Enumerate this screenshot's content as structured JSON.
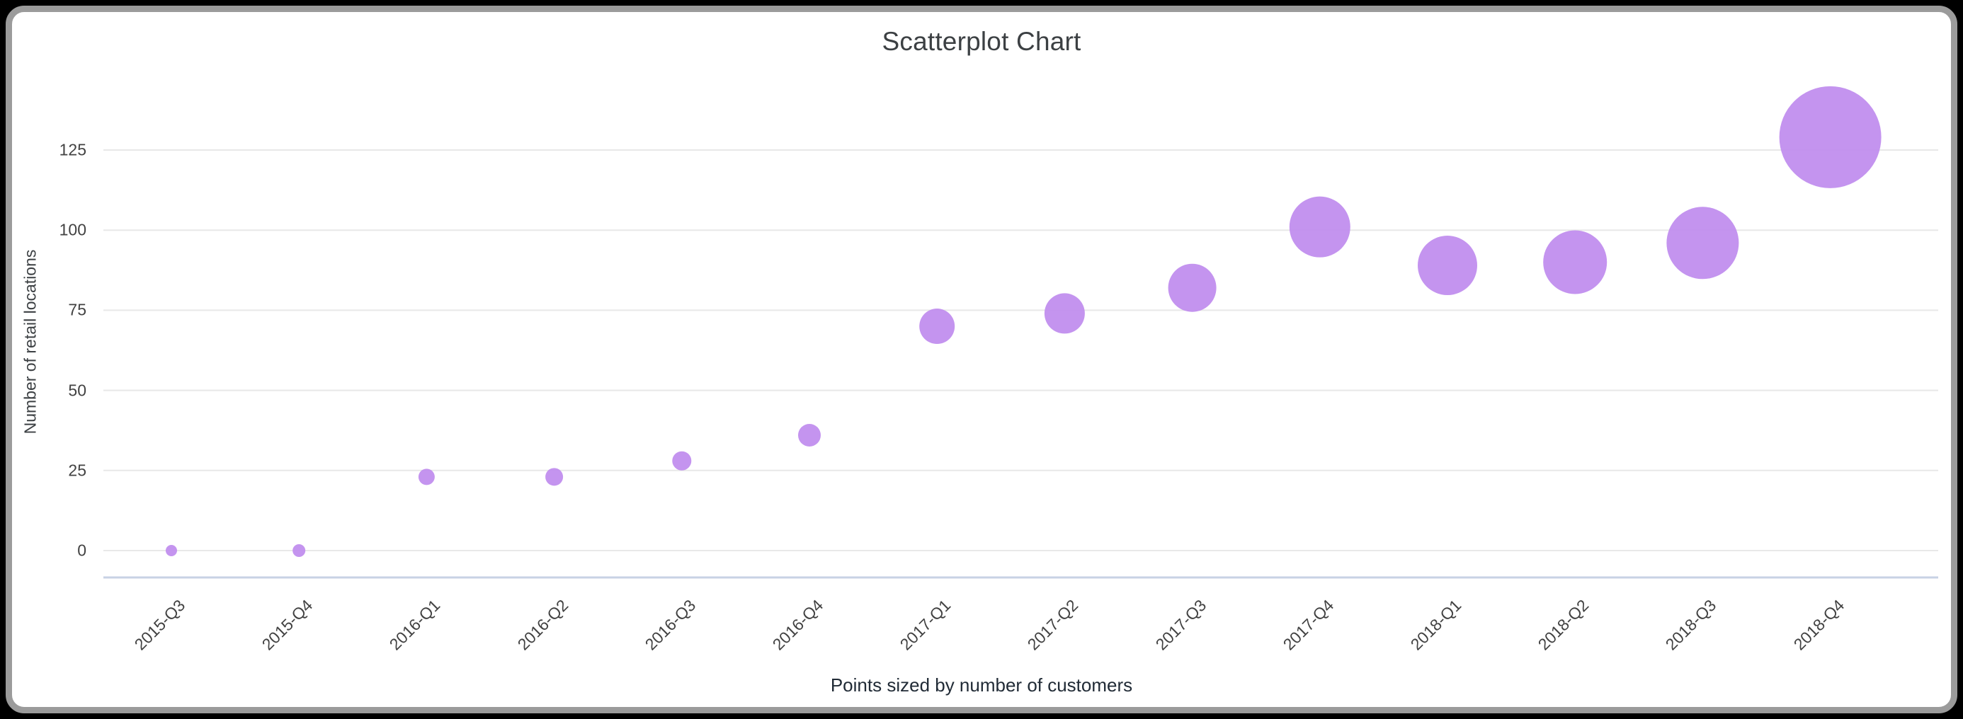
{
  "window": {
    "background_color": "#000000",
    "card_background_color": "#ffffff",
    "card_border_color": "#9b9b9b"
  },
  "chart_data": {
    "type": "scatter",
    "title": "Scatterplot Chart",
    "ylabel": "Number of retail locations",
    "xlabel": "",
    "caption": "Points sized by number of customers",
    "categories": [
      "2015-Q3",
      "2015-Q4",
      "2016-Q1",
      "2016-Q2",
      "2016-Q3",
      "2016-Q4",
      "2017-Q1",
      "2017-Q2",
      "2017-Q3",
      "2017-Q4",
      "2018-Q1",
      "2018-Q2",
      "2018-Q3",
      "2018-Q4"
    ],
    "series": [
      {
        "name": "Number of retail locations",
        "values": [
          0,
          0,
          23,
          23,
          28,
          36,
          70,
          74,
          82,
          101,
          89,
          90,
          96,
          129
        ],
        "point_radius_px": [
          8,
          9,
          11.5,
          12.5,
          13.5,
          16,
          25,
          28.5,
          34,
          43,
          42,
          45,
          51,
          72
        ]
      }
    ],
    "size_encoding": "number of customers",
    "y_ticks": [
      0,
      25,
      50,
      75,
      100,
      125
    ],
    "ylim": [
      0,
      140
    ],
    "grid": "horizontal",
    "legend_position": "none",
    "point_color": "#bf8bee",
    "point_opacity": 0.92,
    "gridline_color": "#e8e8e8",
    "baseline_color": "#c8d2e4",
    "title_color": "#3c4043",
    "tick_color": "#424242"
  }
}
